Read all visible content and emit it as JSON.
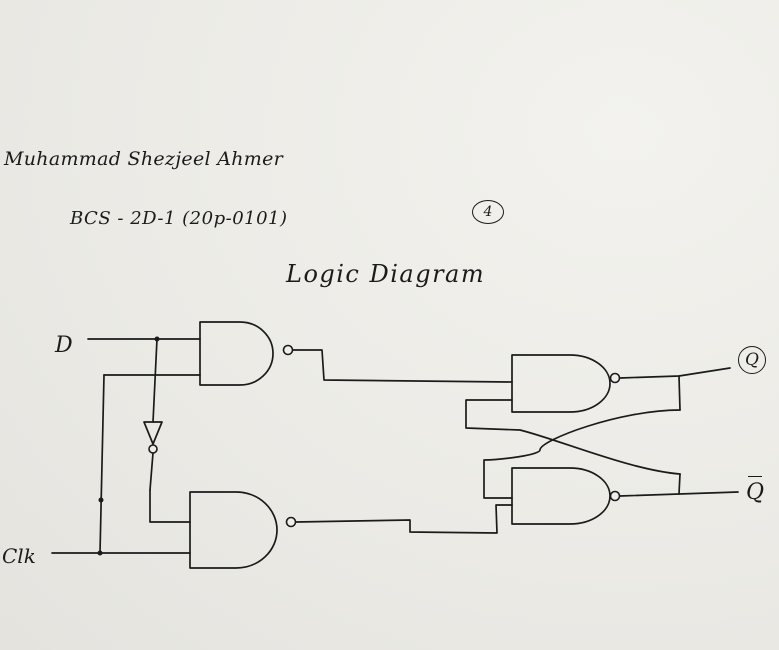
{
  "header": {
    "author": "Muhammad Shezjeel Ahmer",
    "course": "BCS - 2D-1 (20p-0101)",
    "page_number": "4"
  },
  "diagram": {
    "title": "Logic Diagram",
    "labels": {
      "input_d": "D",
      "input_clk": "Clk",
      "output_q": "Q",
      "output_q_bar": "Q"
    },
    "gates": [
      {
        "id": "gate-1",
        "type": "NAND",
        "inputs": [
          "D",
          "Clk"
        ]
      },
      {
        "id": "gate-2",
        "type": "NAND",
        "inputs": [
          "NOT D",
          "Clk"
        ]
      },
      {
        "id": "gate-3",
        "type": "NAND",
        "inputs": [
          "gate-1",
          "Q-bar"
        ],
        "output": "Q"
      },
      {
        "id": "gate-4",
        "type": "NAND",
        "inputs": [
          "Q",
          "gate-2"
        ],
        "output": "Q-bar"
      }
    ],
    "inverter": {
      "id": "inverter-1",
      "type": "NOT",
      "input": "D"
    }
  }
}
